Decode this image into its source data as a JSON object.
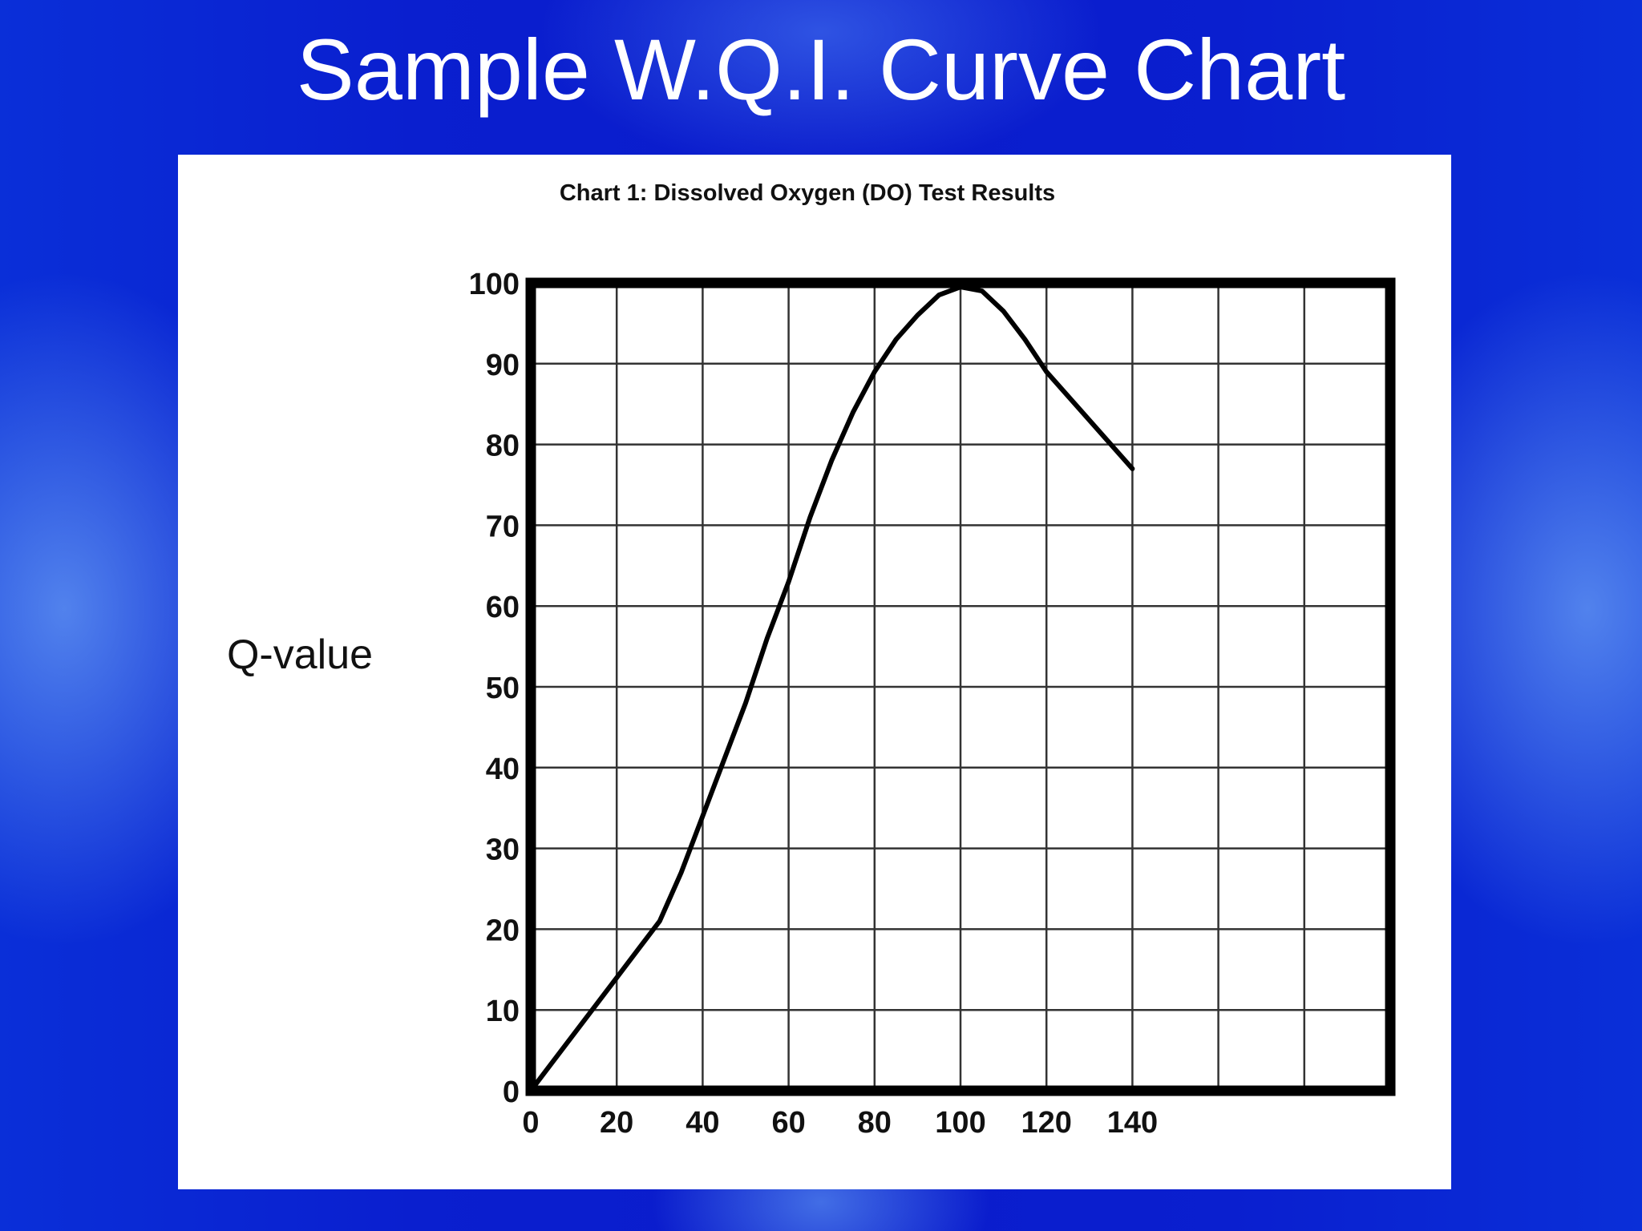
{
  "slide": {
    "title": "Sample W.Q.I. Curve Chart"
  },
  "chart_data": {
    "type": "line",
    "title": "Chart 1: Dissolved Oxygen (DO) Test Results",
    "ylabel": "Q-value",
    "xlabel": "",
    "xlim": [
      0,
      200
    ],
    "ylim": [
      0,
      100
    ],
    "x_ticks": [
      0,
      20,
      40,
      60,
      80,
      100,
      120,
      140
    ],
    "y_ticks": [
      0,
      10,
      20,
      30,
      40,
      50,
      60,
      70,
      80,
      90,
      100
    ],
    "grid": true,
    "series": [
      {
        "x": [
          0,
          5,
          10,
          15,
          20,
          25,
          30,
          35,
          40,
          45,
          50,
          55,
          60,
          65,
          70,
          75,
          80,
          85,
          90,
          95,
          100,
          105,
          110,
          115,
          120,
          125,
          130,
          135,
          140
        ],
        "y": [
          0,
          3.5,
          7,
          10.5,
          14,
          17.5,
          21,
          27,
          34,
          41,
          48,
          56,
          63,
          71,
          78,
          84,
          89,
          93,
          96,
          98.5,
          99.5,
          99,
          96.5,
          93,
          89,
          86,
          83,
          80,
          77
        ]
      }
    ]
  }
}
